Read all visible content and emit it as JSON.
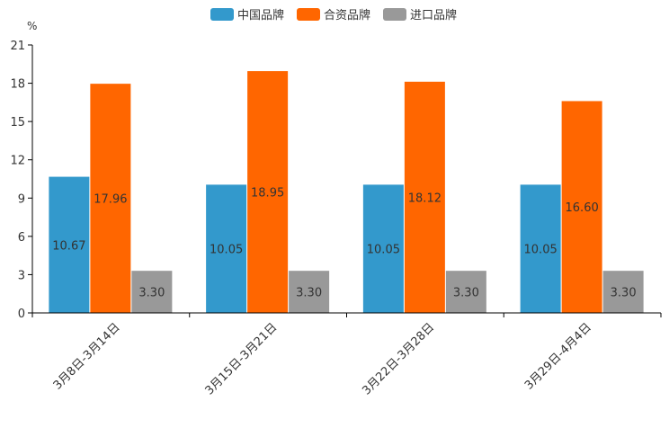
{
  "chart_data": {
    "type": "bar",
    "title": "",
    "unit_label": "%",
    "xlabel": "",
    "ylabel": "",
    "ylim": [
      0,
      21
    ],
    "yticks": [
      0,
      3,
      6,
      9,
      12,
      15,
      18,
      21
    ],
    "categories": [
      "3月8日-3月14日",
      "3月15日-3月21日",
      "3月22日-3月28日",
      "3月29日-4月4日"
    ],
    "series": [
      {
        "name": "中国品牌",
        "color": "#3399CC",
        "values": [
          10.67,
          10.05,
          10.05,
          10.05
        ],
        "labels": [
          "10.67",
          "10.05",
          "10.05",
          "10.05"
        ]
      },
      {
        "name": "合资品牌",
        "color": "#FF6600",
        "values": [
          17.96,
          18.95,
          18.12,
          16.6
        ],
        "labels": [
          "17.96",
          "18.95",
          "18.12",
          "16.60"
        ]
      },
      {
        "name": "进口品牌",
        "color": "#999999",
        "values": [
          3.3,
          3.3,
          3.3,
          3.3
        ],
        "labels": [
          "3.30",
          "3.30",
          "3.30",
          "3.30"
        ]
      }
    ],
    "legend_position": "top-center",
    "grid": false
  }
}
